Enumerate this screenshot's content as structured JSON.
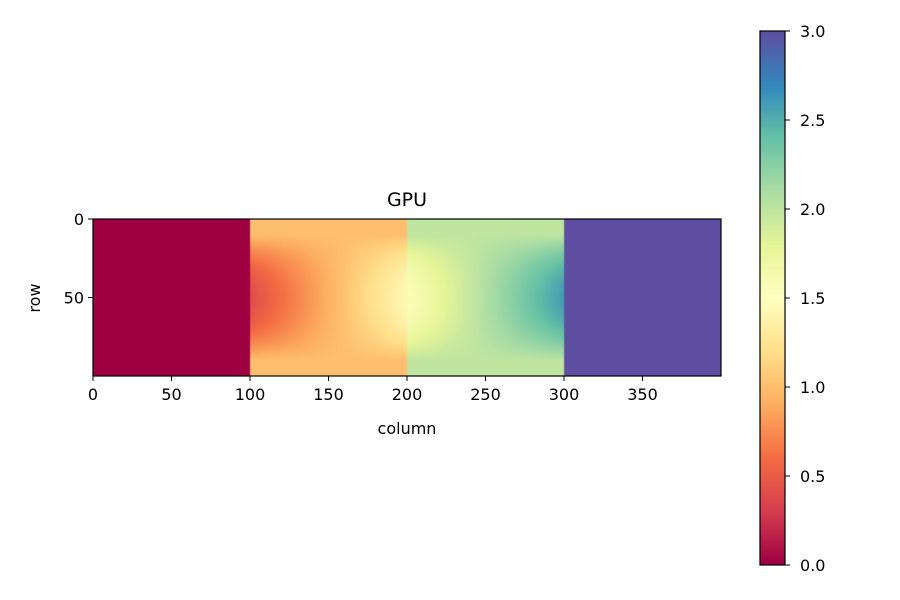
{
  "chart_data": {
    "type": "heatmap",
    "title": "GPU",
    "xlabel": "column",
    "ylabel": "row",
    "x_extent": [
      0,
      400
    ],
    "y_extent": [
      0,
      100
    ],
    "x_ticks": [
      0,
      50,
      100,
      150,
      200,
      250,
      300,
      350
    ],
    "y_ticks": [
      0,
      50
    ],
    "x_tick_labels": [
      "0",
      "50",
      "100",
      "150",
      "200",
      "250",
      "300",
      "350"
    ],
    "y_tick_labels": [
      "0",
      "50"
    ],
    "y_axis_inverted": true,
    "grid": false,
    "colormap": "Spectral",
    "colormap_stops": [
      "#9e0142",
      "#d53e4f",
      "#f46d43",
      "#fdae61",
      "#fee08b",
      "#ffffbf",
      "#e6f598",
      "#abdda4",
      "#66c2a5",
      "#3288bd",
      "#5e4fa2"
    ],
    "value_range": [
      0.0,
      3.0
    ],
    "colorbar": {
      "ticks": [
        0.0,
        0.5,
        1.0,
        1.5,
        2.0,
        2.5,
        3.0
      ],
      "tick_labels": [
        "0.0",
        "0.5",
        "1.0",
        "1.5",
        "2.0",
        "2.5",
        "3.0"
      ],
      "placement": "right"
    },
    "regions": [
      {
        "columns": [
          0,
          100
        ],
        "edge_value": 0.0,
        "center_value": 0.0
      },
      {
        "columns": [
          100,
          200
        ],
        "edge_value": 1.0,
        "center_value_at_left": 0.4,
        "center_value_at_right": 1.45
      },
      {
        "columns": [
          200,
          300
        ],
        "edge_value": 2.0,
        "center_value_at_left": 1.55,
        "center_value_at_right": 2.6
      },
      {
        "columns": [
          300,
          400
        ],
        "edge_value": 3.0,
        "center_value": 3.0
      }
    ],
    "boundary_rows": [
      10,
      90
    ]
  }
}
